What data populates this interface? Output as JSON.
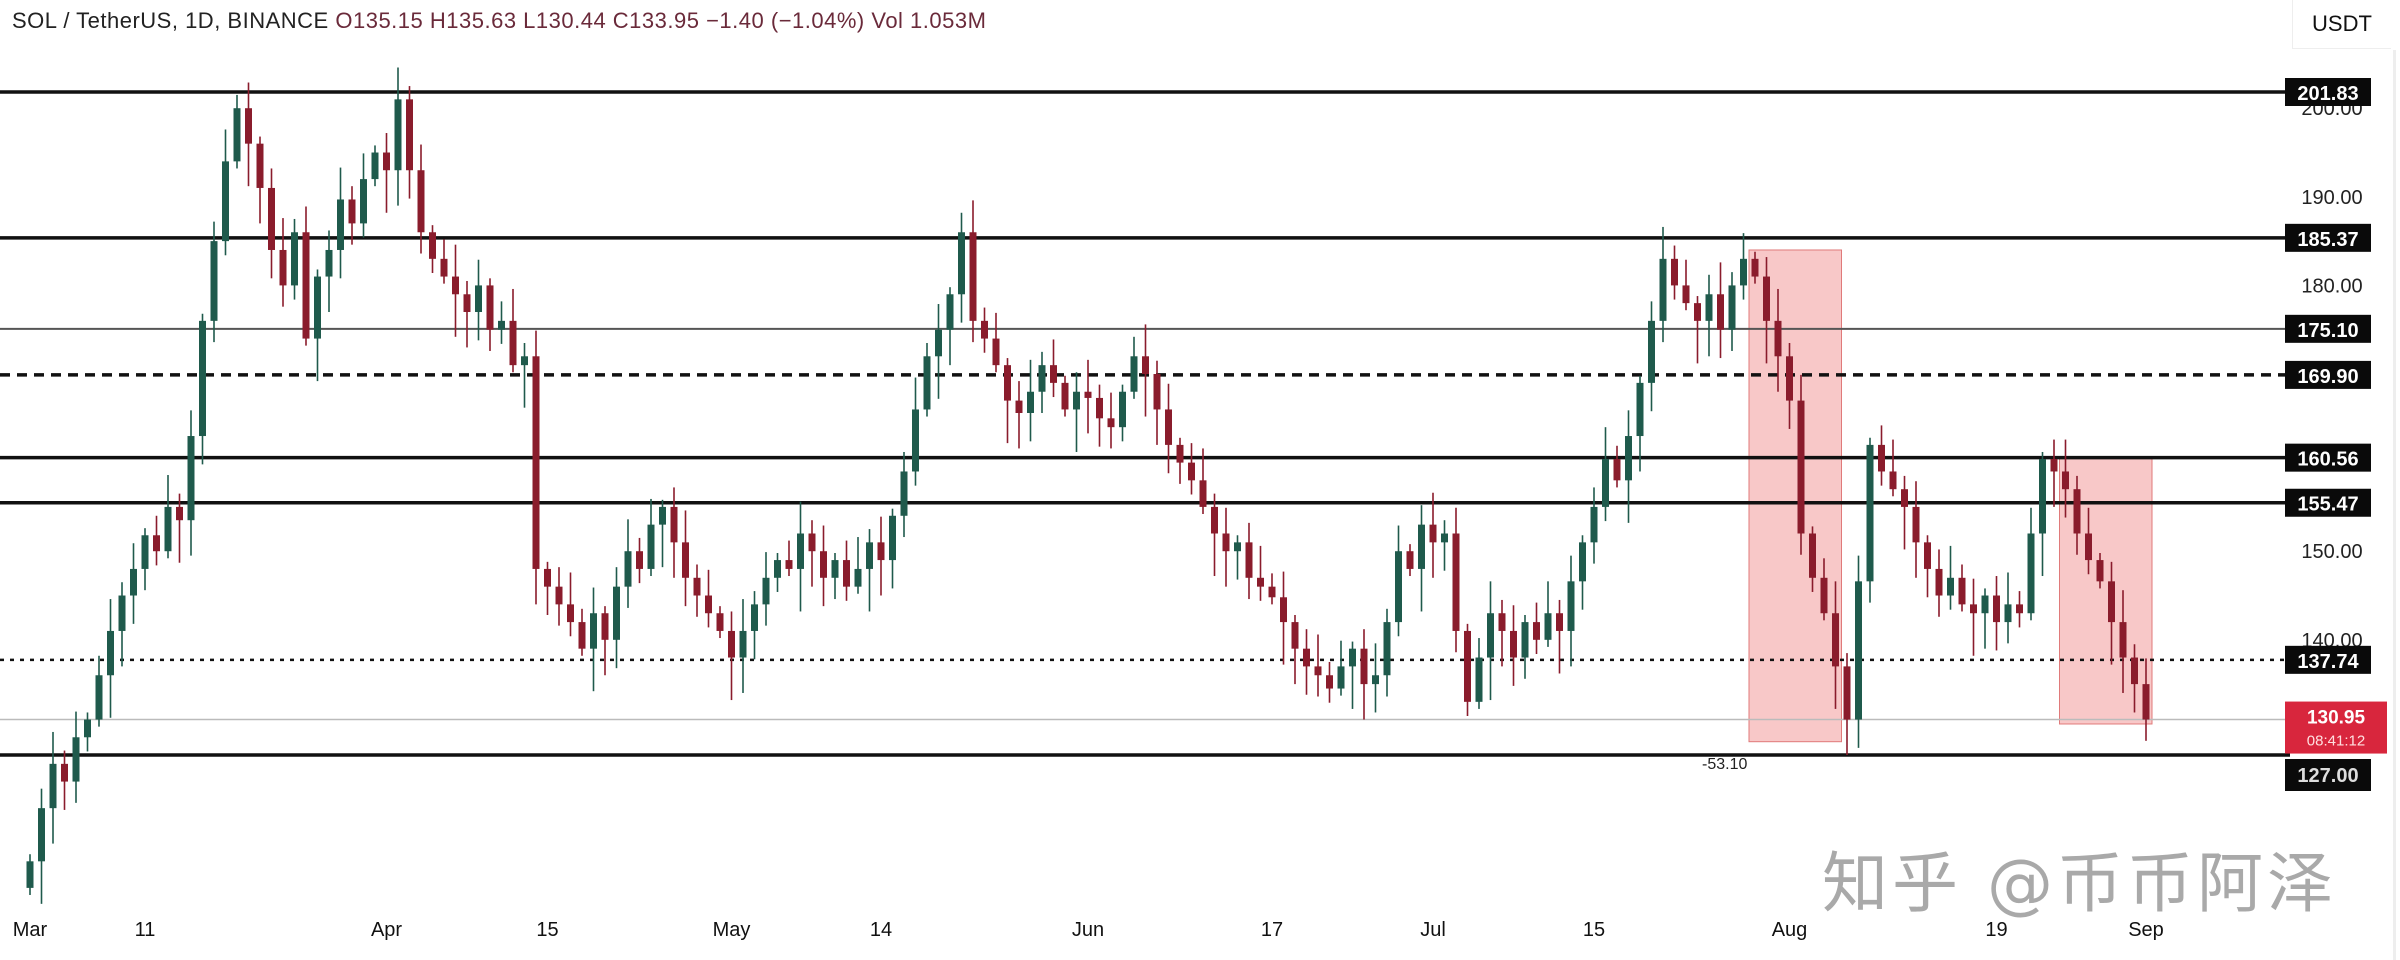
{
  "header": {
    "symbol": "SOL / TetherUS, 1D, BINANCE",
    "ohlc": "O135.15 H135.63 L130.44 C133.95 −1.40 (−1.04%) Vol 1.053M"
  },
  "price_scale": {
    "unit": "USDT",
    "ticks": [
      "200.00",
      "190.00",
      "180.00",
      "150.00",
      "140.00"
    ],
    "level_labels": [
      "201.83",
      "185.37",
      "175.10",
      "169.90",
      "160.56",
      "155.47",
      "137.74"
    ],
    "current_price": "130.95",
    "countdown": "08:41:12",
    "low_label": "127.00"
  },
  "annotations": {
    "low_marker": "-53.10"
  },
  "watermark": "知乎 @币币阿泽",
  "colors": {
    "up": "#1f5a4c",
    "down": "#8a1c2c",
    "highlight": "#f29a9a",
    "price_label": "#d8263d"
  },
  "chart_data": {
    "type": "candlestick",
    "title": "SOL / TetherUS, 1D, BINANCE",
    "start_date": "Mar 1",
    "x_ticks": [
      "Mar",
      "11",
      "Apr",
      "15",
      "May",
      "14",
      "Jun",
      "17",
      "Jul",
      "15",
      "Aug",
      "19",
      "Sep"
    ],
    "x_tick_days": [
      0,
      10,
      31,
      45,
      61,
      74,
      92,
      108,
      122,
      136,
      153,
      171,
      184
    ],
    "ylim": [
      110.6,
      212.2
    ],
    "first_open": 112,
    "closes": [
      115,
      121,
      126,
      124,
      129,
      131,
      136,
      141,
      145,
      148,
      151.8,
      150,
      155,
      153.5,
      163,
      176,
      185,
      194,
      200,
      196,
      191,
      184,
      180,
      186,
      174,
      181,
      184,
      189.7,
      187,
      192,
      195,
      193,
      201,
      193,
      186,
      183,
      181,
      179,
      177,
      180,
      175,
      176,
      171,
      172,
      148,
      146,
      144,
      142,
      139,
      143,
      140,
      146,
      150,
      148,
      153,
      155,
      151,
      147,
      145,
      143,
      141,
      138,
      141,
      144,
      147,
      149,
      148,
      152,
      150,
      147,
      149,
      146,
      148,
      151,
      149,
      154,
      159,
      166,
      172,
      175,
      179,
      186,
      176,
      174,
      171,
      167,
      165.6,
      168,
      171,
      169,
      166,
      168,
      167.3,
      165,
      164,
      168,
      172,
      170,
      166,
      162,
      160,
      158,
      155,
      152,
      150,
      151,
      147,
      146,
      144.8,
      142,
      139,
      137,
      136,
      134.5,
      137,
      139,
      135,
      136,
      142,
      150,
      148,
      153,
      151,
      152,
      141,
      133,
      138,
      143,
      141,
      138,
      142,
      140,
      143,
      141,
      146.6,
      151,
      155,
      160.4,
      158,
      163,
      169,
      176,
      183,
      180,
      178,
      176,
      179,
      175,
      180,
      183,
      181,
      176,
      172,
      167,
      152,
      147,
      143,
      137,
      131,
      146.6,
      162,
      159,
      157,
      155,
      151,
      148,
      145,
      147,
      144,
      143,
      145,
      142,
      144,
      143,
      152,
      160.4,
      159,
      157,
      152,
      149,
      146.6,
      142,
      138,
      135,
      131
    ],
    "horizontal_levels": [
      {
        "value": 201.83,
        "style": "solid"
      },
      {
        "value": 185.37,
        "style": "solid"
      },
      {
        "value": 175.1,
        "style": "thin"
      },
      {
        "value": 169.9,
        "style": "dashed"
      },
      {
        "value": 160.56,
        "style": "solid"
      },
      {
        "value": 155.47,
        "style": "solid"
      },
      {
        "value": 137.74,
        "style": "dotted"
      },
      {
        "value": 127.0,
        "style": "solid"
      }
    ],
    "highlight_zones": [
      {
        "from_day": 150,
        "to_day": 157,
        "high": 184,
        "low": 128.5
      },
      {
        "from_day": 177,
        "to_day": 184,
        "high": 160.5,
        "low": 130.5
      }
    ]
  }
}
